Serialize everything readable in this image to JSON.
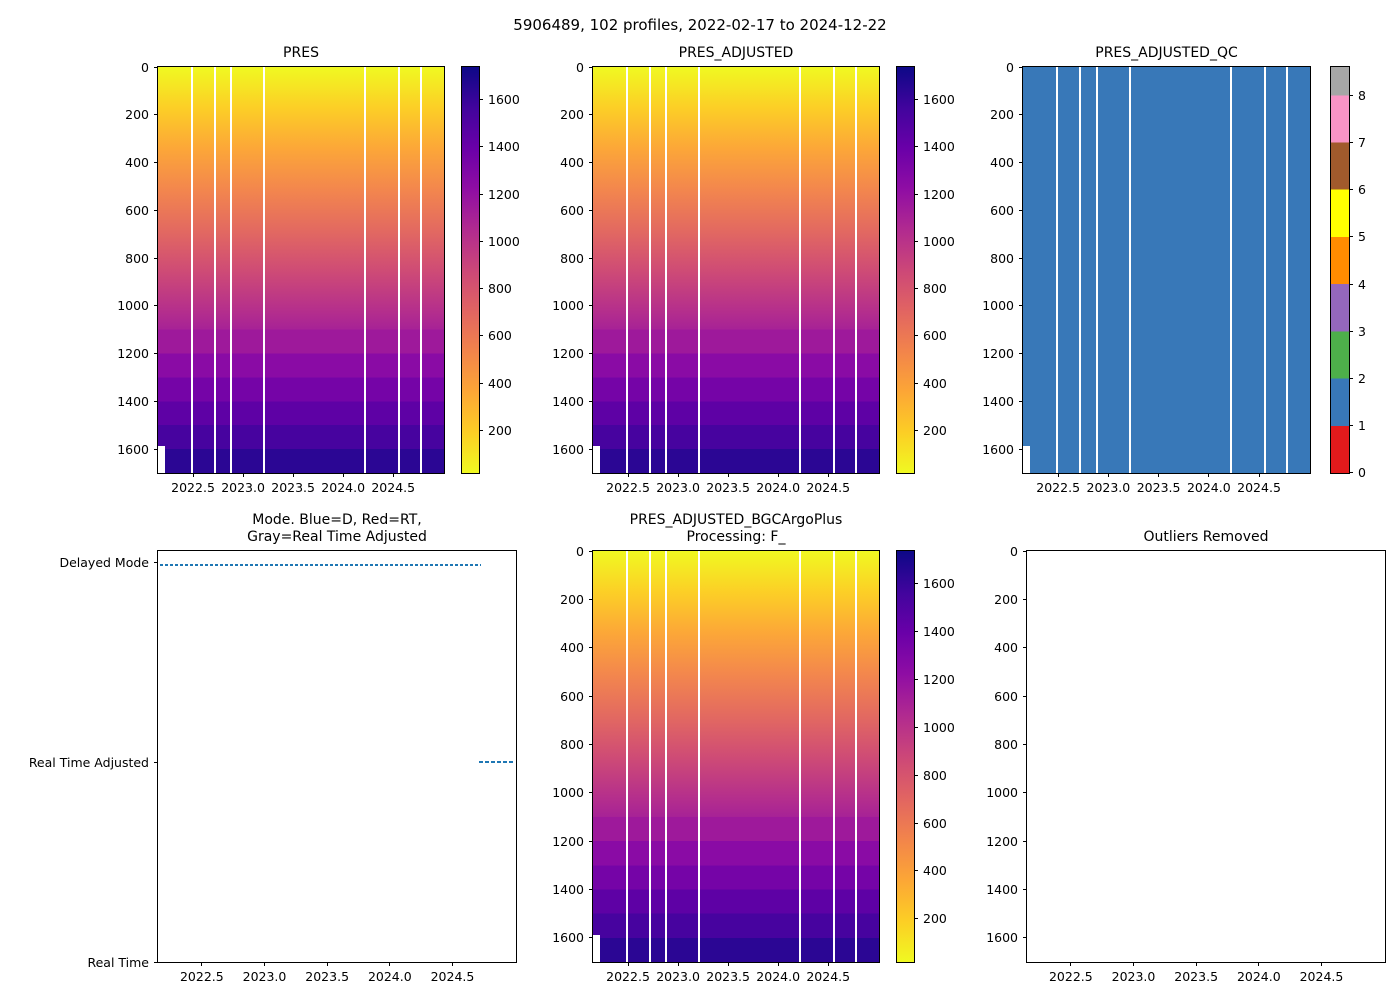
{
  "figure_title": "5906489, 102 profiles, 2022-02-17 to 2024-12-22",
  "subplot_titles": {
    "pres": "PRES",
    "pres_adjusted": "PRES_ADJUSTED",
    "pres_adjusted_qc": "PRES_ADJUSTED_QC",
    "mode_line1": "Mode. Blue=D, Red=RT,",
    "mode_line2": "Gray=Real Time Adjusted",
    "bgc_line1": "PRES_ADJUSTED_BGCArgoPlus",
    "bgc_line2": "Processing: F_",
    "outliers": "Outliers Removed"
  },
  "x_ticks": [
    "2022.5",
    "2023.0",
    "2023.5",
    "2024.0",
    "2024.5"
  ],
  "depth_ticks": [
    "0",
    "200",
    "400",
    "600",
    "800",
    "1000",
    "1200",
    "1400",
    "1600"
  ],
  "pressure_cbar_ticks": [
    "200",
    "400",
    "600",
    "800",
    "1000",
    "1200",
    "1400",
    "1600"
  ],
  "qc_cbar_ticks": [
    "0",
    "1",
    "2",
    "3",
    "4",
    "5",
    "6",
    "7",
    "8"
  ],
  "mode_y_labels": [
    "Delayed Mode",
    "Real Time Adjusted",
    "Real Time"
  ],
  "gap_fractions": [
    0.115,
    0.195,
    0.253,
    0.368,
    0.72,
    0.838,
    0.917
  ],
  "colors": {
    "mode_line_blue": "#1f77b4",
    "qc_flag_1_blue": "#3878b8",
    "colormap": "plasma_r",
    "plasma_low_value": "#f0f921",
    "plasma_high_value": "#0d0887",
    "qc_palette_0_to_8": [
      "#e31a1c",
      "#3878b8",
      "#4daf4a",
      "#9467bd",
      "#ff8c00",
      "#ffff00",
      "#a05a2c",
      "#f993c5",
      "#a6a6a6"
    ]
  },
  "chart_data": [
    {
      "type": "heatmap",
      "title": "PRES",
      "x_range": [
        2022.15,
        2025.0
      ],
      "x_tick_values": [
        2022.5,
        2023.0,
        2023.5,
        2024.0,
        2024.5
      ],
      "y_range": [
        0,
        1700
      ],
      "y_tick_values": [
        0,
        200,
        400,
        600,
        800,
        1000,
        1200,
        1400,
        1600
      ],
      "y_axis_inverted": true,
      "colormap": "plasma_r",
      "colorbar_ticks": [
        200,
        400,
        600,
        800,
        1000,
        1200,
        1400,
        1600
      ],
      "value_range": [
        15,
        1740
      ],
      "pattern": "pressure value equals depth for every profile: smooth gradient 0-1100 dbar, discrete ~100 dbar steps from 1100 to ~1700 dbar",
      "missing_profile_gap_x_fractions": [
        0.115,
        0.195,
        0.253,
        0.368,
        0.72,
        0.838,
        0.917
      ]
    },
    {
      "type": "heatmap",
      "title": "PRES_ADJUSTED",
      "x_range": [
        2022.15,
        2025.0
      ],
      "x_tick_values": [
        2022.5,
        2023.0,
        2023.5,
        2024.0,
        2024.5
      ],
      "y_range": [
        0,
        1700
      ],
      "y_tick_values": [
        0,
        200,
        400,
        600,
        800,
        1000,
        1200,
        1400,
        1600
      ],
      "y_axis_inverted": true,
      "colormap": "plasma_r",
      "colorbar_ticks": [
        200,
        400,
        600,
        800,
        1000,
        1200,
        1400,
        1600
      ],
      "value_range": [
        15,
        1740
      ],
      "pattern": "identical appearance to PRES panel",
      "missing_profile_gap_x_fractions": [
        0.115,
        0.195,
        0.253,
        0.368,
        0.72,
        0.838,
        0.917
      ]
    },
    {
      "type": "heatmap",
      "title": "PRES_ADJUSTED_QC",
      "x_range": [
        2022.15,
        2025.0
      ],
      "x_tick_values": [
        2022.5,
        2023.0,
        2023.5,
        2024.0,
        2024.5
      ],
      "y_range": [
        0,
        1700
      ],
      "y_tick_values": [
        0,
        200,
        400,
        600,
        800,
        1000,
        1200,
        1400,
        1600
      ],
      "uniform_value": 1,
      "value_meaning": "QC flag = 1 (good data) for all points",
      "colorbar_ticks": [
        0,
        1,
        2,
        3,
        4,
        5,
        6,
        7,
        8
      ],
      "colorbar_colors": [
        "#e31a1c",
        "#3878b8",
        "#4daf4a",
        "#9467bd",
        "#ff8c00",
        "#ffff00",
        "#a05a2c",
        "#f993c5",
        "#a6a6a6"
      ]
    },
    {
      "type": "line",
      "title": "Mode. Blue=D, Red=RT, Gray=Real Time Adjusted",
      "x_range": [
        2022.15,
        2025.0
      ],
      "x_tick_values": [
        2022.5,
        2023.0,
        2023.5,
        2024.0,
        2024.5
      ],
      "y_categories": [
        "Real Time",
        "Real Time Adjusted",
        "Delayed Mode"
      ],
      "series": [
        {
          "name": "Delayed Mode period",
          "y": "Delayed Mode",
          "x_start": 2022.16,
          "x_end": 2024.72,
          "style": "dotted",
          "color": "#1f77b4"
        },
        {
          "name": "Real Time Adjusted period",
          "y": "Real Time Adjusted",
          "x_start": 2024.74,
          "x_end": 2024.97,
          "style": "dotted",
          "color": "#1f77b4"
        }
      ]
    },
    {
      "type": "heatmap",
      "title": "PRES_ADJUSTED_BGCArgoPlus Processing: F_",
      "x_range": [
        2022.15,
        2025.0
      ],
      "x_tick_values": [
        2022.5,
        2023.0,
        2023.5,
        2024.0,
        2024.5
      ],
      "y_range": [
        0,
        1700
      ],
      "y_tick_values": [
        0,
        200,
        400,
        600,
        800,
        1000,
        1200,
        1400,
        1600
      ],
      "y_axis_inverted": true,
      "colormap": "plasma_r",
      "colorbar_ticks": [
        200,
        400,
        600,
        800,
        1000,
        1200,
        1400,
        1600
      ],
      "value_range": [
        15,
        1740
      ],
      "pattern": "identical appearance to PRES panel",
      "missing_profile_gap_x_fractions": [
        0.115,
        0.195,
        0.253,
        0.368,
        0.72,
        0.838,
        0.917
      ]
    },
    {
      "type": "empty",
      "title": "Outliers Removed",
      "x_range": [
        2022.15,
        2025.0
      ],
      "x_tick_values": [
        2022.5,
        2023.0,
        2023.5,
        2024.0,
        2024.5
      ],
      "y_range": [
        0,
        1700
      ],
      "y_tick_values": [
        0,
        200,
        400,
        600,
        800,
        1000,
        1200,
        1400,
        1600
      ],
      "note": "axes shown with no data plotted"
    }
  ]
}
